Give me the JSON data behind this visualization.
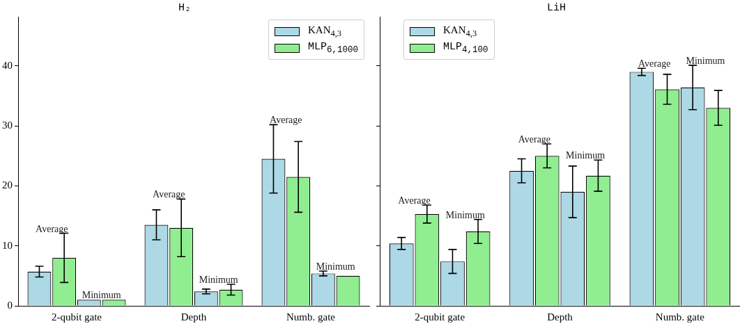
{
  "chart_data": [
    {
      "type": "bar",
      "title": "H₂",
      "categories": [
        "2-qubit gate",
        "Depth",
        "Numb. gate"
      ],
      "ylim": [
        0,
        48.2
      ],
      "yticks": [
        0,
        10,
        20,
        30,
        40
      ],
      "legend": "top right",
      "series": [
        {
          "name": "KAN$_{4,3}$",
          "color": "#add8e6",
          "values": [
            5.7,
            13.5,
            24.5
          ],
          "errors": [
            0.9,
            2.5,
            5.7
          ]
        },
        {
          "name": "MLP$_{6,1000}$",
          "color": "#90ee90",
          "values": [
            8.0,
            13.0,
            21.5
          ],
          "errors": [
            4.1,
            4.8,
            5.9
          ]
        },
        {
          "color": "#add8e6",
          "values": [
            1.0,
            2.4,
            5.4
          ],
          "errors": [
            null,
            0.4,
            0.4
          ]
        },
        {
          "color": "#90ee90",
          "values": [
            1.0,
            2.7,
            5.0
          ],
          "errors": [
            null,
            0.9,
            null
          ]
        }
      ],
      "annotations": [
        "Average",
        "Minimum",
        "Average",
        "Minimum",
        "Average",
        "Minimum"
      ]
    },
    {
      "type": "bar",
      "title": "LiH",
      "categories": [
        "2-qubit gate",
        "Depth",
        "Numb. gate"
      ],
      "ylim": [
        0,
        48.2
      ],
      "yticks": [
        0,
        10,
        20,
        30,
        40
      ],
      "legend": "top left",
      "tick_labels": "x",
      "series": [
        {
          "name": "KAN$_{4,3}$",
          "color": "#add8e6",
          "values": [
            10.4,
            22.5,
            39.0
          ],
          "errors": [
            1.0,
            2.0,
            0.6
          ]
        },
        {
          "name": "MLP$_{4,100}$",
          "color": "#90ee90",
          "values": [
            15.3,
            25.0,
            36.1
          ],
          "errors": [
            1.5,
            2.0,
            2.5
          ]
        },
        {
          "color": "#add8e6",
          "values": [
            7.4,
            19.0,
            36.4
          ],
          "errors": [
            2.0,
            4.3,
            3.7
          ]
        },
        {
          "color": "#90ee90",
          "values": [
            12.4,
            21.7,
            33.0
          ],
          "errors": [
            2.0,
            2.6,
            2.9
          ]
        }
      ],
      "annotations": [
        "Average",
        "Minimum",
        "Average",
        "Minimum",
        "Average",
        "Minimum"
      ]
    }
  ]
}
